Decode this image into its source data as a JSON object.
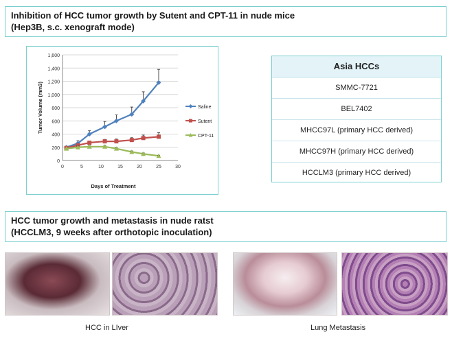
{
  "section1": {
    "title_line1": "Inhibition of HCC tumor growth by Sutent and CPT-11 in nude mice",
    "title_line2": "(Hep3B, s.c. xenograft mode)"
  },
  "chart_data": {
    "type": "line",
    "title": "",
    "xlabel": "Days of Treatment",
    "ylabel": "Tumor Volume (mm3)",
    "xlim": [
      0,
      30
    ],
    "ylim": [
      0,
      1600
    ],
    "xticks": [
      "0",
      "5",
      "10",
      "15",
      "20",
      "25",
      "30"
    ],
    "yticks": [
      "0",
      "200",
      "400",
      "600",
      "800",
      "1,000",
      "1,200",
      "1,400",
      "1,600"
    ],
    "grid": true,
    "legend_position": "right",
    "series": [
      {
        "name": "Saline",
        "color": "#4f81bd",
        "marker": "diamond",
        "x": [
          1,
          4,
          7,
          11,
          14,
          18,
          21,
          25
        ],
        "y": [
          200,
          260,
          400,
          510,
          600,
          700,
          900,
          1180
        ],
        "err": [
          0,
          40,
          50,
          80,
          90,
          110,
          140,
          200
        ]
      },
      {
        "name": "Sutent",
        "color": "#c0504d",
        "marker": "square",
        "x": [
          1,
          4,
          7,
          11,
          14,
          18,
          21,
          25
        ],
        "y": [
          190,
          230,
          270,
          290,
          290,
          310,
          340,
          360
        ],
        "err": [
          0,
          20,
          25,
          30,
          35,
          35,
          45,
          60
        ]
      },
      {
        "name": "CPT-11",
        "color": "#9bbb59",
        "marker": "triangle",
        "x": [
          1,
          4,
          7,
          11,
          14,
          18,
          21,
          25
        ],
        "y": [
          180,
          200,
          210,
          210,
          180,
          130,
          100,
          70
        ],
        "err": [
          0,
          20,
          20,
          20,
          20,
          15,
          15,
          10
        ]
      }
    ]
  },
  "table": {
    "header": "Asia HCCs",
    "rows": [
      "SMMC-7721",
      "BEL7402",
      "MHCC97L (primary HCC derived)",
      "MHCC97H (primary HCC derived)",
      "HCCLM3 (primary HCC derived)"
    ]
  },
  "section2": {
    "title_line1": "HCC tumor growth and metastasis in nude ratst",
    "title_line2": "(HCCLM3, 9 weeks after orthotopic inoculation)"
  },
  "captions": {
    "liver": "HCC in LIver",
    "lung": "Lung Metastasis"
  }
}
